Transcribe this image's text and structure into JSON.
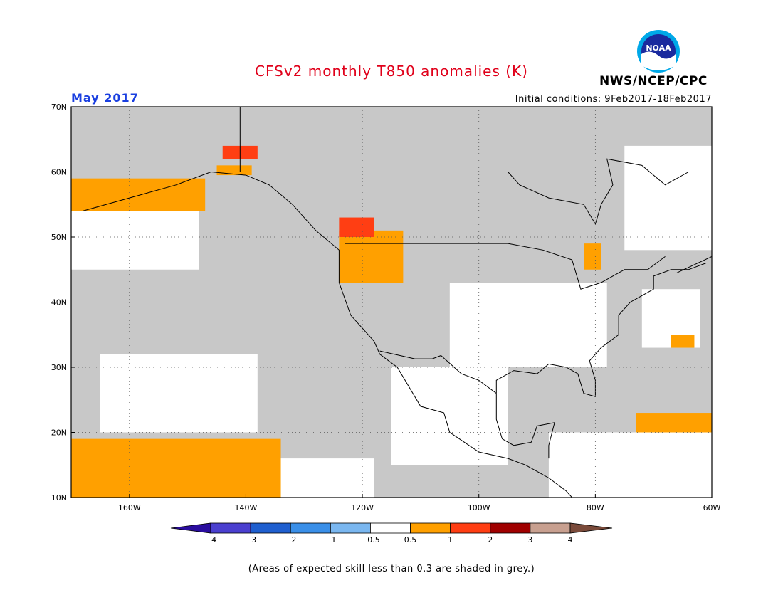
{
  "header": {
    "title": "CFSv2 monthly T850 anomalies (K)",
    "month": "May 2017",
    "initial_conditions": "Initial conditions: 9Feb2017-18Feb2017",
    "organization": "NWS/NCEP/CPC",
    "logo_text": "NOAA"
  },
  "colors": {
    "title": "#e0001a",
    "month": "#1a3fe0",
    "land_ocean_default": "#ffffff",
    "low_skill_grey": "#c8c8c8",
    "coastline": "#000000",
    "grid": "#555555"
  },
  "map": {
    "projection": "cylindrical equidistant",
    "lon_range": [
      -170,
      -60
    ],
    "lat_range": [
      10,
      70
    ],
    "lat_labels": [
      "10N",
      "20N",
      "30N",
      "40N",
      "50N",
      "60N",
      "70N"
    ],
    "lat_values": [
      10,
      20,
      30,
      40,
      50,
      60,
      70
    ],
    "lon_labels": [
      "160W",
      "140W",
      "120W",
      "100W",
      "80W",
      "60W"
    ],
    "lon_values": [
      -160,
      -140,
      -120,
      -100,
      -80,
      -60
    ],
    "grid_style": "dotted",
    "white_regions": [
      {
        "name": "North Pacific band",
        "lon": [
          -170,
          -148
        ],
        "lat": [
          45,
          54
        ]
      },
      {
        "name": "Central Pacific",
        "lon": [
          -165,
          -138
        ],
        "lat": [
          20,
          32
        ]
      },
      {
        "name": "Central US",
        "lon": [
          -105,
          -78
        ],
        "lat": [
          30,
          43
        ]
      },
      {
        "name": "Mexico",
        "lon": [
          -115,
          -95
        ],
        "lat": [
          15,
          30
        ]
      },
      {
        "name": "Caribbean / Central America",
        "lon": [
          -88,
          -60
        ],
        "lat": [
          10,
          20
        ]
      },
      {
        "name": "Western Atlantic",
        "lon": [
          -72,
          -62
        ],
        "lat": [
          33,
          42
        ]
      },
      {
        "name": "Eastern Canada",
        "lon": [
          -75,
          -60
        ],
        "lat": [
          48,
          64
        ]
      },
      {
        "name": "Tropical East Pacific",
        "lon": [
          -135,
          -118
        ],
        "lat": [
          10,
          16
        ]
      }
    ],
    "warm_regions": [
      {
        "name": "Gulf of Alaska / Alaska Peninsula",
        "lon": [
          -170,
          -147
        ],
        "lat": [
          54,
          59
        ],
        "category": "0.5 to 1"
      },
      {
        "name": "Southern Alaska coast",
        "lon": [
          -145,
          -139
        ],
        "lat": [
          59.5,
          61
        ],
        "category": "0.5 to 1"
      },
      {
        "name": "Yukon",
        "lon": [
          -144,
          -138
        ],
        "lat": [
          62,
          64
        ],
        "category": "1 to 2"
      },
      {
        "name": "Southern British Columbia / Pacific Northwest",
        "lon": [
          -124,
          -113
        ],
        "lat": [
          43,
          51
        ],
        "category": "0.5 to 1"
      },
      {
        "name": "Central British Columbia",
        "lon": [
          -124,
          -118
        ],
        "lat": [
          50,
          53
        ],
        "category": "1 to 2"
      },
      {
        "name": "Ontario / Hudson Bay south",
        "lon": [
          -82,
          -79
        ],
        "lat": [
          45,
          49
        ],
        "category": "0.5 to 1"
      },
      {
        "name": "Tropical Pacific near Hawaii",
        "lon": [
          -170,
          -134
        ],
        "lat": [
          10,
          19
        ],
        "category": "0.5 to 1"
      },
      {
        "name": "Caribbean / Atlantic east",
        "lon": [
          -73,
          -60
        ],
        "lat": [
          20,
          23
        ],
        "category": "0.5 to 1"
      },
      {
        "name": "Western Atlantic small",
        "lon": [
          -67,
          -63
        ],
        "lat": [
          33,
          35
        ],
        "category": "0.5 to 1"
      }
    ]
  },
  "colorbar": {
    "labels": [
      "−4",
      "−3",
      "−2",
      "−1",
      "−0.5",
      "0.5",
      "1",
      "2",
      "3",
      "4"
    ],
    "colors": [
      "#2a0d9e",
      "#4a3fcf",
      "#1f5fcf",
      "#3a8fe8",
      "#7ab7f0",
      "#ffffff",
      "#ffa000",
      "#ff3e13",
      "#a00000",
      "#c8a090",
      "#7a4a3a"
    ]
  },
  "footnote": "(Areas of expected skill less than 0.3 are shaded in grey.)"
}
